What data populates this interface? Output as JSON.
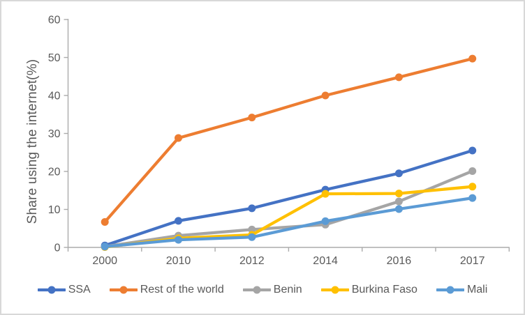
{
  "chart_data": {
    "type": "line",
    "title": "",
    "xlabel": "",
    "ylabel": "Share using the internet(%)",
    "ylim": [
      0,
      60
    ],
    "yticks": [
      0,
      10,
      20,
      30,
      40,
      50,
      60
    ],
    "categories": [
      "2000",
      "2010",
      "2012",
      "2014",
      "2016",
      "2017"
    ],
    "grid": false,
    "legend_position": "bottom",
    "marker": "circle",
    "axis_color": "#ababab",
    "tick_label_color": "#595959",
    "series": [
      {
        "name": "SSA",
        "color": "#4472C4",
        "values": [
          0.5,
          7.0,
          10.3,
          15.2,
          19.5,
          25.5
        ]
      },
      {
        "name": "Rest of the world",
        "color": "#ED7D31",
        "values": [
          6.7,
          28.8,
          34.2,
          40.0,
          44.8,
          49.7
        ]
      },
      {
        "name": "Benin",
        "color": "#A5A5A5",
        "values": [
          0.2,
          3.1,
          4.7,
          6.0,
          12.1,
          20.1
        ]
      },
      {
        "name": "Burkina Faso",
        "color": "#FFC000",
        "values": [
          0.1,
          2.4,
          3.3,
          14.1,
          14.2,
          16.0
        ]
      },
      {
        "name": "Mali",
        "color": "#5B9BD5",
        "values": [
          0.2,
          2.0,
          2.7,
          6.9,
          10.1,
          13.0
        ]
      }
    ]
  }
}
